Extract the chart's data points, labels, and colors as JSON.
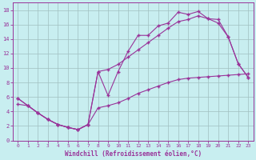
{
  "xlabel": "Windchill (Refroidissement éolien,°C)",
  "bg_color": "#c8eef0",
  "grid_color": "#a0bfc0",
  "line_color": "#993399",
  "xlim": [
    -0.5,
    23.5
  ],
  "ylim": [
    0,
    19
  ],
  "xticks": [
    0,
    1,
    2,
    3,
    4,
    5,
    6,
    7,
    8,
    9,
    10,
    11,
    12,
    13,
    14,
    15,
    16,
    17,
    18,
    19,
    20,
    21,
    22,
    23
  ],
  "yticks": [
    0,
    2,
    4,
    6,
    8,
    10,
    12,
    14,
    16,
    18
  ],
  "line1_y": [
    5.8,
    4.8,
    3.8,
    2.9,
    2.2,
    1.8,
    1.5,
    2.2,
    9.5,
    6.2,
    9.5,
    12.3,
    14.5,
    14.5,
    15.8,
    16.2,
    17.7,
    17.4,
    17.8,
    16.8,
    16.7,
    14.3,
    10.6,
    8.7
  ],
  "line2_y": [
    5.0,
    4.8,
    3.8,
    2.9,
    2.2,
    1.8,
    1.5,
    2.2,
    4.5,
    4.8,
    5.2,
    5.8,
    6.5,
    7.0,
    7.5,
    8.0,
    8.4,
    8.6,
    8.7,
    8.8,
    8.9,
    9.0,
    9.1,
    9.2
  ],
  "line3_y": [
    5.8,
    4.8,
    3.8,
    2.9,
    2.2,
    1.8,
    1.5,
    2.2,
    9.5,
    9.8,
    10.5,
    11.5,
    12.5,
    13.5,
    14.5,
    15.5,
    16.4,
    16.7,
    17.2,
    16.8,
    16.2,
    14.3,
    10.6,
    8.7
  ]
}
